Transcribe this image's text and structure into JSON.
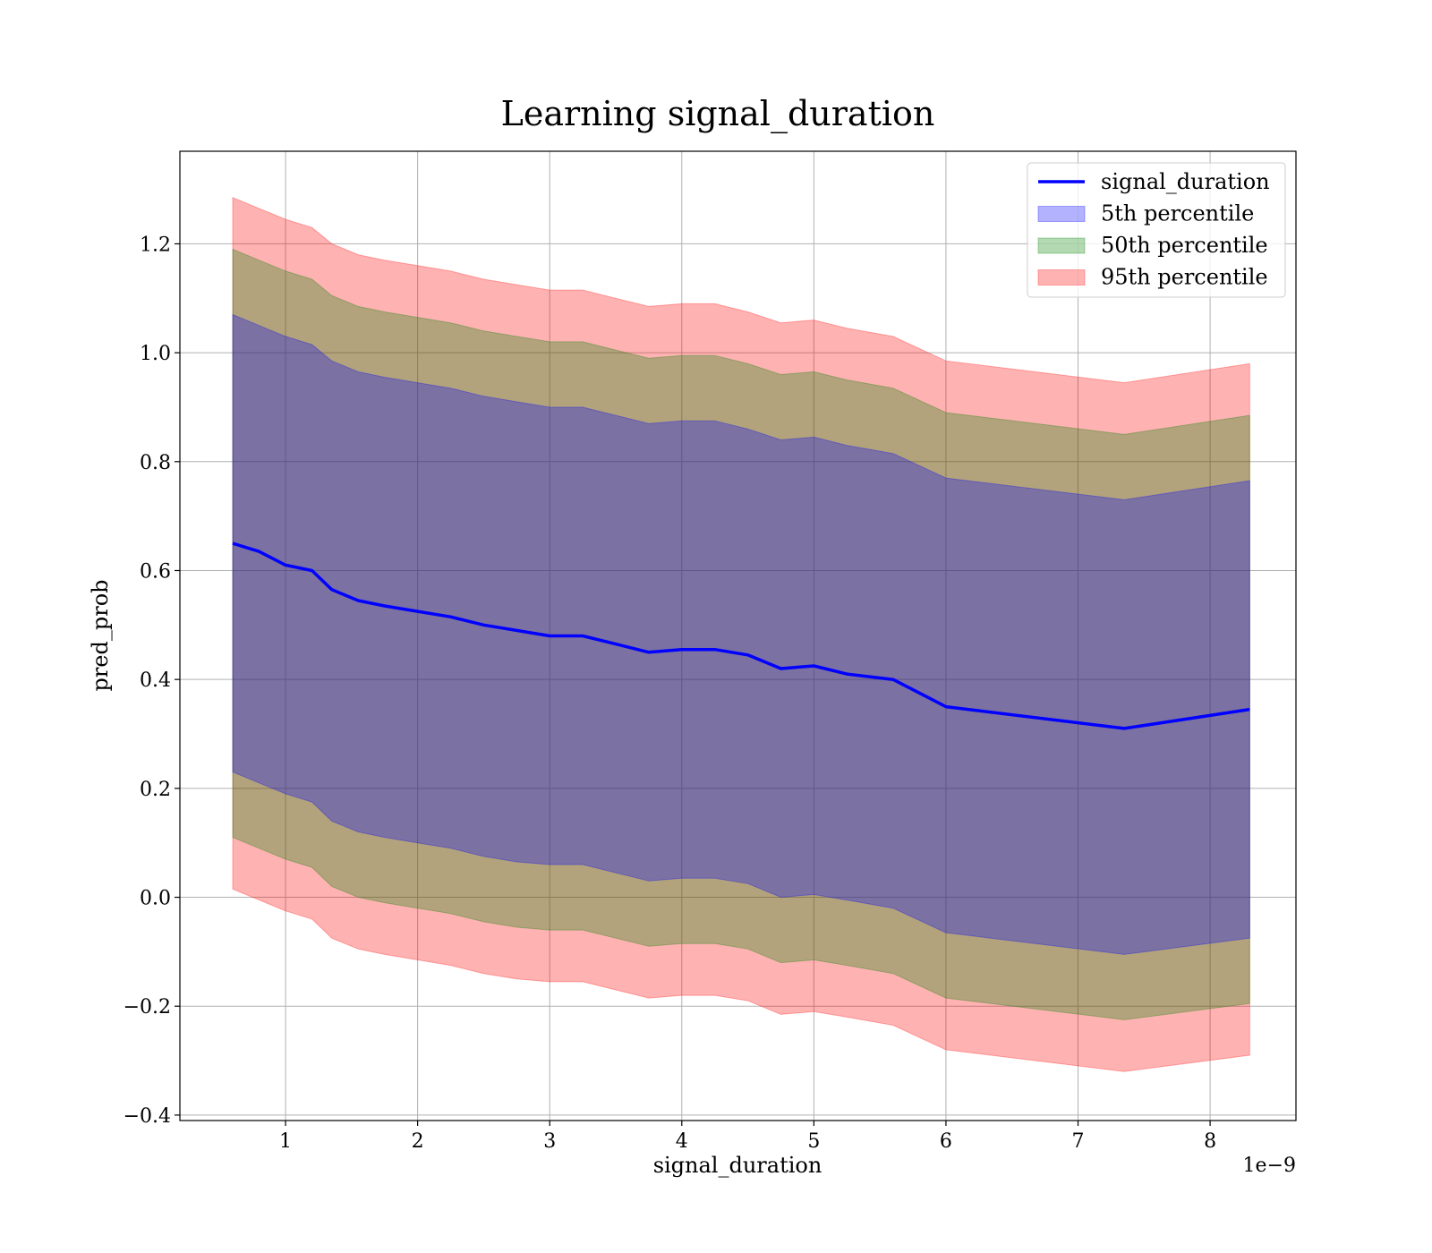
{
  "chart_data": {
    "type": "line",
    "title": "Learning signal_duration",
    "xlabel": "signal_duration",
    "ylabel": "pred_prob",
    "x_offset_text": "1e−9",
    "x_scale_exponent": -9,
    "xlim": [
      0.2,
      8.65
    ],
    "ylim": [
      -0.41,
      1.37
    ],
    "xticks": [
      1,
      2,
      3,
      4,
      5,
      6,
      7,
      8
    ],
    "xtick_labels": [
      "1",
      "2",
      "3",
      "4",
      "5",
      "6",
      "7",
      "8"
    ],
    "yticks": [
      -0.4,
      -0.2,
      0.0,
      0.2,
      0.4,
      0.6,
      0.8,
      1.0,
      1.2
    ],
    "ytick_labels": [
      "−0.4",
      "−0.2",
      "0.0",
      "0.2",
      "0.4",
      "0.6",
      "0.8",
      "1.0",
      "1.2"
    ],
    "grid": true,
    "legend_position": "top-right",
    "x": [
      0.6,
      0.8,
      1.0,
      1.2,
      1.35,
      1.55,
      1.75,
      2.0,
      2.25,
      2.5,
      2.75,
      3.0,
      3.25,
      3.5,
      3.75,
      4.0,
      4.25,
      4.5,
      4.75,
      5.0,
      5.25,
      5.6,
      6.0,
      7.35,
      8.3
    ],
    "series": [
      {
        "name": "signal_duration",
        "kind": "line",
        "color": "#0000ff",
        "values": [
          0.65,
          0.635,
          0.61,
          0.6,
          0.565,
          0.545,
          0.535,
          0.525,
          0.515,
          0.5,
          0.49,
          0.48,
          0.48,
          0.465,
          0.45,
          0.455,
          0.455,
          0.445,
          0.42,
          0.425,
          0.41,
          0.4,
          0.35,
          0.31,
          0.345
        ]
      },
      {
        "name": "5th percentile",
        "kind": "band",
        "color": "#0000ff",
        "lower": [
          0.23,
          0.21,
          0.19,
          0.175,
          0.14,
          0.12,
          0.11,
          0.1,
          0.09,
          0.075,
          0.065,
          0.06,
          0.06,
          0.045,
          0.03,
          0.035,
          0.035,
          0.025,
          0.0,
          0.005,
          -0.005,
          -0.02,
          -0.065,
          -0.105,
          -0.075
        ],
        "upper": [
          1.07,
          1.05,
          1.03,
          1.015,
          0.985,
          0.965,
          0.955,
          0.945,
          0.935,
          0.92,
          0.91,
          0.9,
          0.9,
          0.885,
          0.87,
          0.875,
          0.875,
          0.86,
          0.84,
          0.845,
          0.83,
          0.815,
          0.77,
          0.73,
          0.765
        ]
      },
      {
        "name": "50th percentile",
        "kind": "band",
        "color": "#008000",
        "lower": [
          0.11,
          0.09,
          0.07,
          0.055,
          0.02,
          0.0,
          -0.01,
          -0.02,
          -0.03,
          -0.045,
          -0.055,
          -0.06,
          -0.06,
          -0.075,
          -0.09,
          -0.085,
          -0.085,
          -0.095,
          -0.12,
          -0.115,
          -0.125,
          -0.14,
          -0.185,
          -0.225,
          -0.195
        ],
        "upper": [
          1.19,
          1.17,
          1.15,
          1.135,
          1.105,
          1.085,
          1.075,
          1.065,
          1.055,
          1.04,
          1.03,
          1.02,
          1.02,
          1.005,
          0.99,
          0.995,
          0.995,
          0.98,
          0.96,
          0.965,
          0.95,
          0.935,
          0.89,
          0.85,
          0.885
        ]
      },
      {
        "name": "95th percentile",
        "kind": "band",
        "color": "#ff0000",
        "lower": [
          0.015,
          -0.005,
          -0.025,
          -0.04,
          -0.075,
          -0.095,
          -0.105,
          -0.115,
          -0.125,
          -0.14,
          -0.15,
          -0.155,
          -0.155,
          -0.17,
          -0.185,
          -0.18,
          -0.18,
          -0.19,
          -0.215,
          -0.21,
          -0.22,
          -0.235,
          -0.28,
          -0.32,
          -0.29
        ],
        "upper": [
          1.285,
          1.265,
          1.245,
          1.23,
          1.2,
          1.18,
          1.17,
          1.16,
          1.15,
          1.135,
          1.125,
          1.115,
          1.115,
          1.1,
          1.085,
          1.09,
          1.09,
          1.075,
          1.055,
          1.06,
          1.045,
          1.03,
          0.985,
          0.945,
          0.98
        ]
      }
    ]
  }
}
